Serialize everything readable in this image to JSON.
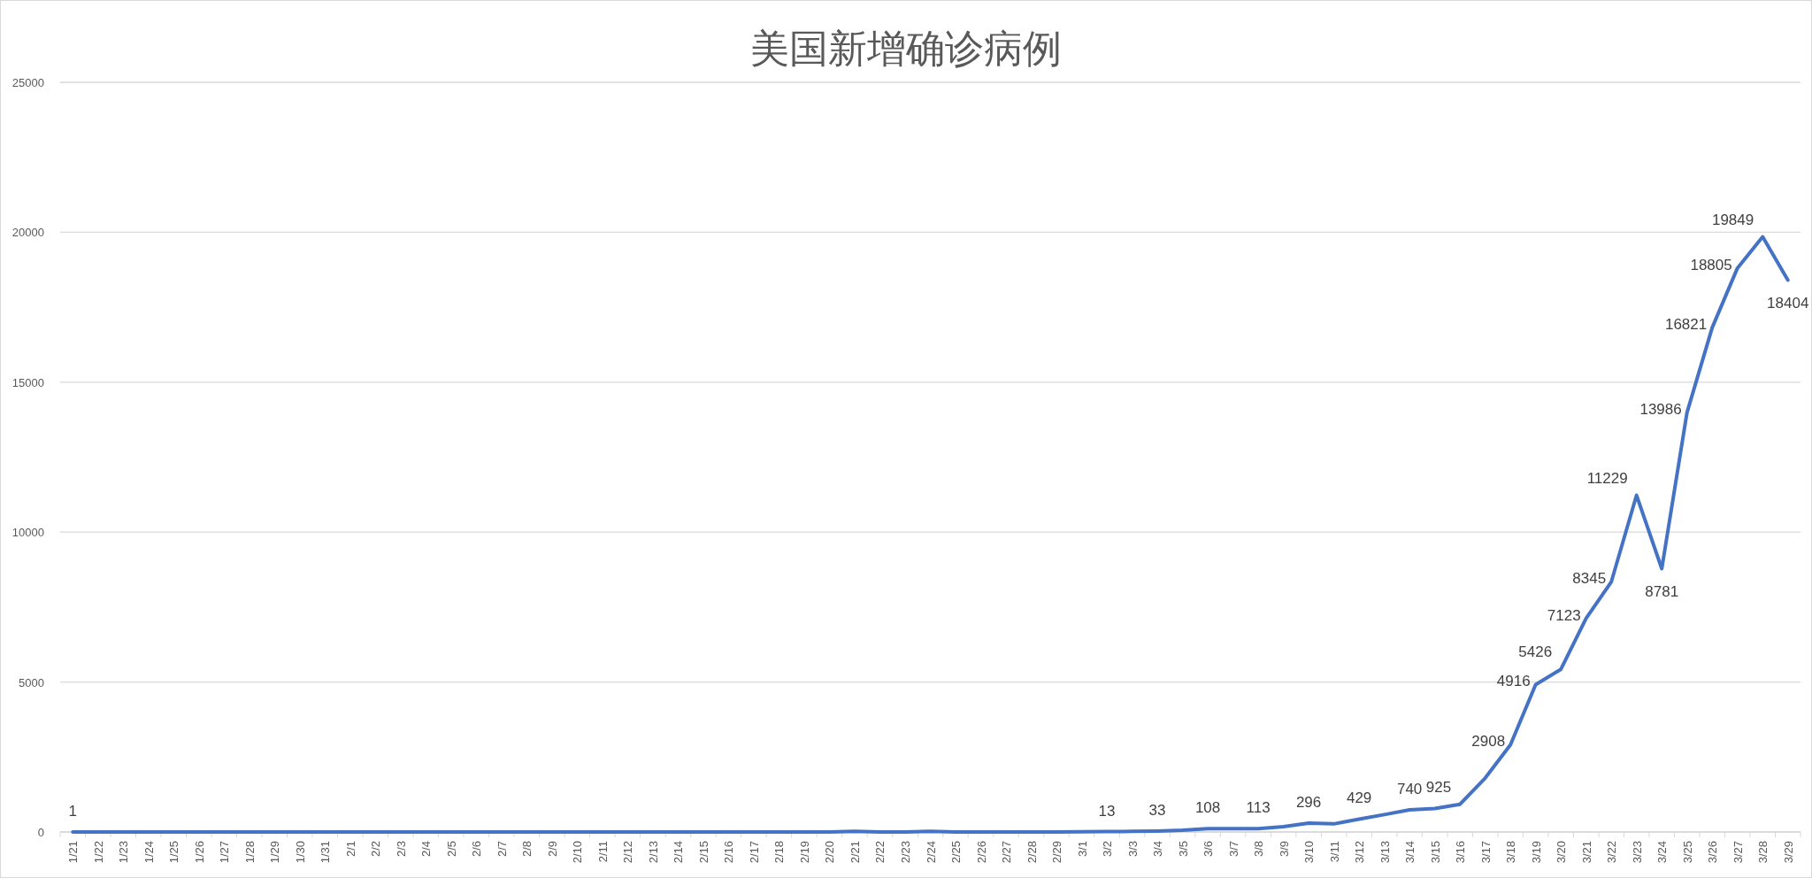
{
  "chart_data": {
    "type": "line",
    "title": "美国新增确诊病例",
    "categories": [
      "1/21",
      "1/22",
      "1/23",
      "1/24",
      "1/25",
      "1/26",
      "1/27",
      "1/28",
      "1/29",
      "1/30",
      "1/31",
      "2/1",
      "2/2",
      "2/3",
      "2/4",
      "2/5",
      "2/6",
      "2/7",
      "2/8",
      "2/9",
      "2/10",
      "2/11",
      "2/12",
      "2/13",
      "2/14",
      "2/15",
      "2/16",
      "2/17",
      "2/18",
      "2/19",
      "2/20",
      "2/21",
      "2/22",
      "2/23",
      "2/24",
      "2/25",
      "2/26",
      "2/27",
      "2/28",
      "2/29",
      "3/1",
      "3/2",
      "3/3",
      "3/4",
      "3/5",
      "3/6",
      "3/7",
      "3/8",
      "3/9",
      "3/10",
      "3/11",
      "3/12",
      "3/13",
      "3/14",
      "3/15",
      "3/16",
      "3/17",
      "3/18",
      "3/19",
      "3/20",
      "3/21",
      "3/22",
      "3/23",
      "3/24",
      "3/25",
      "3/26",
      "3/27",
      "3/28",
      "3/29"
    ],
    "series": [
      {
        "color": "#4472c4",
        "values": [
          1,
          0,
          0,
          0,
          0,
          0,
          0,
          0,
          0,
          0,
          0,
          0,
          0,
          0,
          0,
          0,
          0,
          0,
          0,
          0,
          0,
          0,
          0,
          0,
          0,
          0,
          0,
          0,
          0,
          0,
          0,
          20,
          0,
          0,
          20,
          0,
          0,
          0,
          0,
          0,
          10,
          13,
          20,
          33,
          60,
          108,
          110,
          113,
          180,
          296,
          270,
          429,
          580,
          740,
          780,
          925,
          1800,
          2908,
          4916,
          5426,
          7123,
          8345,
          11229,
          8781,
          13986,
          16821,
          18805,
          19849,
          18404
        ],
        "value_labels": [
          "1",
          null,
          null,
          null,
          null,
          null,
          null,
          null,
          null,
          null,
          null,
          null,
          null,
          null,
          null,
          null,
          null,
          null,
          null,
          null,
          null,
          null,
          null,
          null,
          null,
          null,
          null,
          null,
          null,
          null,
          null,
          null,
          null,
          null,
          null,
          null,
          null,
          null,
          null,
          null,
          null,
          "13",
          null,
          "33",
          null,
          "108",
          null,
          "113",
          null,
          "296",
          null,
          "429",
          null,
          "740",
          null,
          "925",
          null,
          "2908",
          "4916",
          "5426",
          "7123",
          "8345",
          "11229",
          "8781",
          "13986",
          "16821",
          "18805",
          "19849",
          "18404"
        ]
      }
    ],
    "ylim": [
      0,
      25000
    ],
    "yticks": [
      0,
      5000,
      10000,
      15000,
      20000,
      25000
    ],
    "grid": "y",
    "marker": "none",
    "line_style": "solid"
  }
}
